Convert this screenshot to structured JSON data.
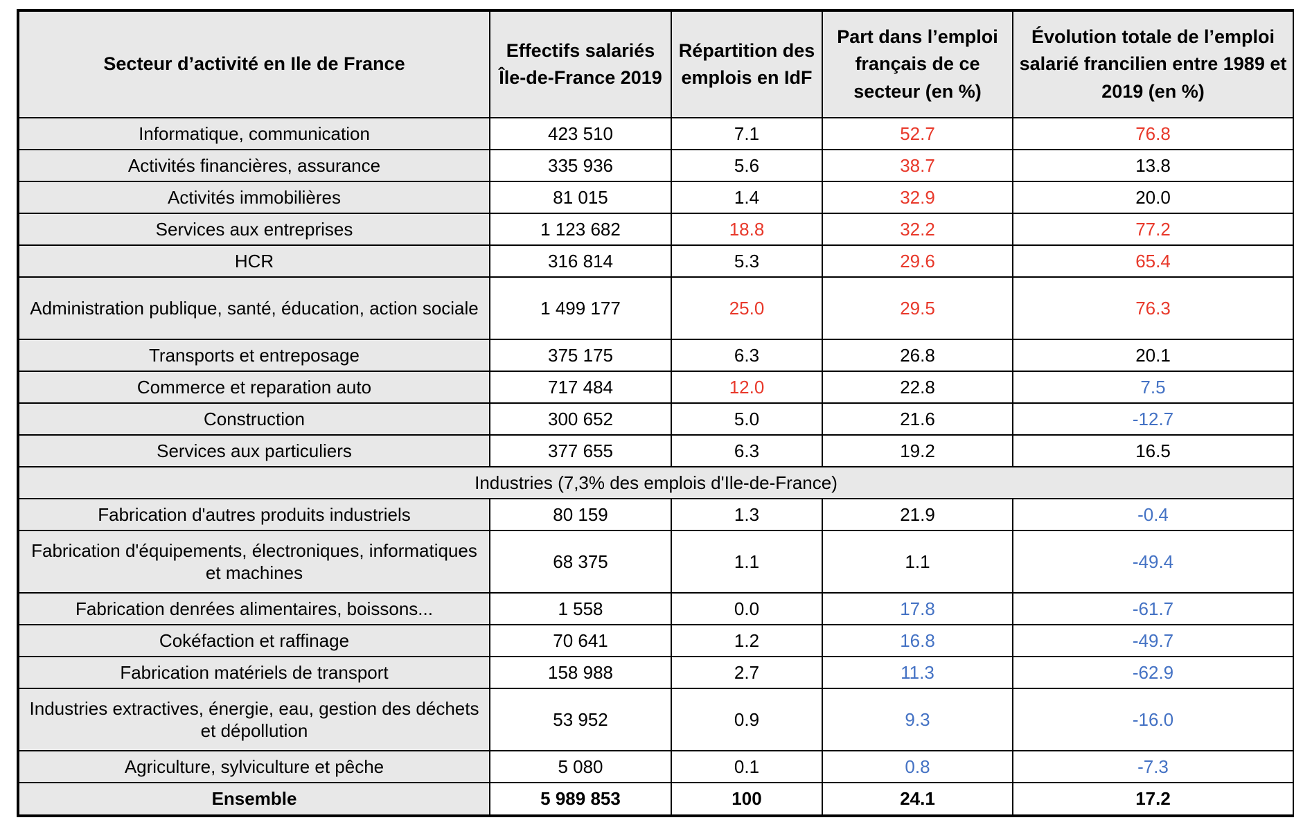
{
  "colors": {
    "black": "#000000",
    "red": "#e8392b",
    "blue": "#4472c4",
    "header_fill": "#e8e8e8"
  },
  "table": {
    "columns": [
      "Secteur d’activité en Ile de France",
      "Effectifs salariés Île-de-France 2019",
      "Répartition des emplois en IdF",
      "Part dans l’emploi français de ce secteur (en %)",
      "Évolution totale de l’emploi salarié francilien entre 1989 et 2019 (en %)"
    ],
    "rows": [
      {
        "type": "data",
        "label": "Informatique, communication",
        "tall": false,
        "cells": [
          {
            "v": "423 510",
            "c": "black"
          },
          {
            "v": "7.1",
            "c": "black"
          },
          {
            "v": "52.7",
            "c": "red"
          },
          {
            "v": "76.8",
            "c": "red"
          }
        ]
      },
      {
        "type": "data",
        "label": "Activités financières, assurance",
        "tall": false,
        "cells": [
          {
            "v": "335 936",
            "c": "black"
          },
          {
            "v": "5.6",
            "c": "black"
          },
          {
            "v": "38.7",
            "c": "red"
          },
          {
            "v": "13.8",
            "c": "black"
          }
        ]
      },
      {
        "type": "data",
        "label": "Activités immobilières",
        "tall": false,
        "cells": [
          {
            "v": "81 015",
            "c": "black"
          },
          {
            "v": "1.4",
            "c": "black"
          },
          {
            "v": "32.9",
            "c": "red"
          },
          {
            "v": "20.0",
            "c": "black"
          }
        ]
      },
      {
        "type": "data",
        "label": "Services aux entreprises",
        "tall": false,
        "cells": [
          {
            "v": "1 123 682",
            "c": "black"
          },
          {
            "v": "18.8",
            "c": "red"
          },
          {
            "v": "32.2",
            "c": "red"
          },
          {
            "v": "77.2",
            "c": "red"
          }
        ]
      },
      {
        "type": "data",
        "label": "HCR",
        "tall": false,
        "cells": [
          {
            "v": "316 814",
            "c": "black"
          },
          {
            "v": "5.3",
            "c": "black"
          },
          {
            "v": "29.6",
            "c": "red"
          },
          {
            "v": "65.4",
            "c": "red"
          }
        ]
      },
      {
        "type": "data",
        "label": "Administration publique, santé, éducation, action sociale",
        "tall": true,
        "cells": [
          {
            "v": "1 499 177",
            "c": "black"
          },
          {
            "v": "25.0",
            "c": "red"
          },
          {
            "v": "29.5",
            "c": "red"
          },
          {
            "v": "76.3",
            "c": "red"
          }
        ]
      },
      {
        "type": "data",
        "label": "Transports et entreposage",
        "tall": false,
        "cells": [
          {
            "v": "375 175",
            "c": "black"
          },
          {
            "v": "6.3",
            "c": "black"
          },
          {
            "v": "26.8",
            "c": "black"
          },
          {
            "v": "20.1",
            "c": "black"
          }
        ]
      },
      {
        "type": "data",
        "label": "Commerce et reparation auto",
        "tall": false,
        "cells": [
          {
            "v": "717 484",
            "c": "black"
          },
          {
            "v": "12.0",
            "c": "red"
          },
          {
            "v": "22.8",
            "c": "black"
          },
          {
            "v": "7.5",
            "c": "blue"
          }
        ]
      },
      {
        "type": "data",
        "label": "Construction",
        "tall": false,
        "cells": [
          {
            "v": "300 652",
            "c": "black"
          },
          {
            "v": "5.0",
            "c": "black"
          },
          {
            "v": "21.6",
            "c": "black"
          },
          {
            "v": "-12.7",
            "c": "blue"
          }
        ]
      },
      {
        "type": "data",
        "label": "Services aux particuliers",
        "tall": false,
        "cells": [
          {
            "v": "377 655",
            "c": "black"
          },
          {
            "v": "6.3",
            "c": "black"
          },
          {
            "v": "19.2",
            "c": "black"
          },
          {
            "v": "16.5",
            "c": "black"
          }
        ]
      },
      {
        "type": "section",
        "label": "Industries (7,3% des emplois d'Ile-de-France)"
      },
      {
        "type": "data",
        "label": "Fabrication d'autres produits industriels",
        "tall": false,
        "cells": [
          {
            "v": "80 159",
            "c": "black"
          },
          {
            "v": "1.3",
            "c": "black"
          },
          {
            "v": "21.9",
            "c": "black"
          },
          {
            "v": "-0.4",
            "c": "blue"
          }
        ]
      },
      {
        "type": "data",
        "label": "Fabrication d'équipements, électroniques, informatiques et machines",
        "tall": true,
        "cells": [
          {
            "v": "68 375",
            "c": "black"
          },
          {
            "v": "1.1",
            "c": "black"
          },
          {
            "v": "1.1",
            "c": "black"
          },
          {
            "v": "-49.4",
            "c": "blue"
          }
        ]
      },
      {
        "type": "data",
        "label": "Fabrication denrées alimentaires, boissons...",
        "tall": false,
        "cells": [
          {
            "v": "1 558",
            "c": "black"
          },
          {
            "v": "0.0",
            "c": "black"
          },
          {
            "v": "17.8",
            "c": "blue"
          },
          {
            "v": "-61.7",
            "c": "blue"
          }
        ]
      },
      {
        "type": "data",
        "label": "Cokéfaction et raffinage",
        "tall": false,
        "cells": [
          {
            "v": "70 641",
            "c": "black"
          },
          {
            "v": "1.2",
            "c": "black"
          },
          {
            "v": "16.8",
            "c": "blue"
          },
          {
            "v": "-49.7",
            "c": "blue"
          }
        ]
      },
      {
        "type": "data",
        "label": "Fabrication matériels de transport",
        "tall": false,
        "cells": [
          {
            "v": "158 988",
            "c": "black"
          },
          {
            "v": "2.7",
            "c": "black"
          },
          {
            "v": "11.3",
            "c": "blue"
          },
          {
            "v": "-62.9",
            "c": "blue"
          }
        ]
      },
      {
        "type": "data",
        "label": "Industries extractives, énergie, eau, gestion des déchets et dépollution",
        "tall": true,
        "cells": [
          {
            "v": "53 952",
            "c": "black"
          },
          {
            "v": "0.9",
            "c": "black"
          },
          {
            "v": "9.3",
            "c": "blue"
          },
          {
            "v": "-16.0",
            "c": "blue"
          }
        ]
      },
      {
        "type": "data",
        "label": "Agriculture, sylviculture et pêche",
        "tall": false,
        "cells": [
          {
            "v": "5 080",
            "c": "black"
          },
          {
            "v": "0.1",
            "c": "black"
          },
          {
            "v": "0.8",
            "c": "blue"
          },
          {
            "v": "-7.3",
            "c": "blue"
          }
        ]
      },
      {
        "type": "total",
        "label": "Ensemble",
        "cells": [
          {
            "v": "5 989 853",
            "c": "black"
          },
          {
            "v": "100",
            "c": "black"
          },
          {
            "v": "24.1",
            "c": "black"
          },
          {
            "v": "17.2",
            "c": "black"
          }
        ]
      }
    ]
  }
}
